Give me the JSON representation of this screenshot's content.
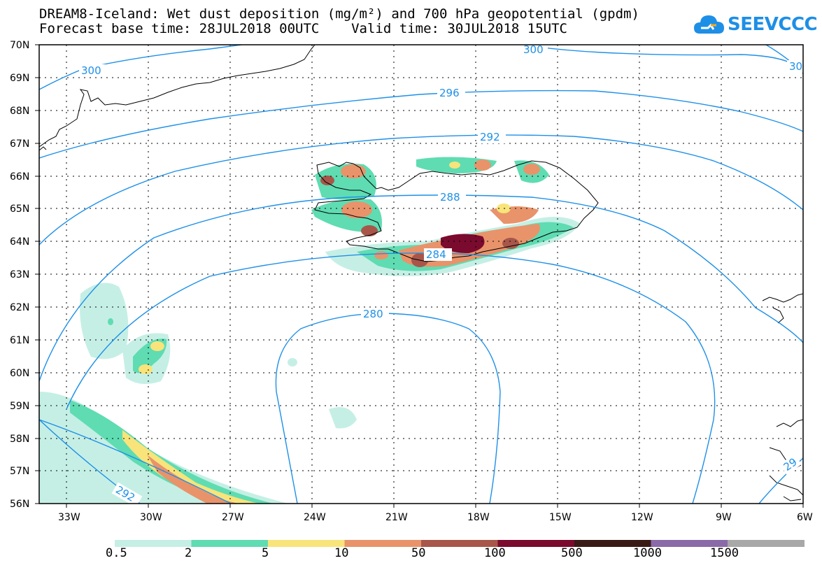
{
  "title": {
    "line1": "DREAM8-Iceland: Wet dust deposition (mg/m²) and 700 hPa geopotential (gpdm)",
    "line2": "Forecast base time: 28JUL2018 00UTC    Valid time: 30JUL2018 15UTC"
  },
  "logo": {
    "text": "SEEVCCC",
    "icon": "cloud-icon"
  },
  "axes": {
    "lat_labels": [
      "70N",
      "69N",
      "68N",
      "67N",
      "66N",
      "65N",
      "64N",
      "63N",
      "62N",
      "61N",
      "60N",
      "59N",
      "58N",
      "57N",
      "56N"
    ],
    "lon_labels": [
      "33W",
      "30W",
      "27W",
      "24W",
      "21W",
      "18W",
      "15W",
      "12W",
      "9W",
      "6W"
    ],
    "lat_range": [
      56,
      70
    ],
    "lon_range": [
      -34.0,
      -6.0
    ],
    "grid": "dotted"
  },
  "contours": {
    "field": "700 hPa geopotential (gpdm)",
    "color": "#1e90e8",
    "labels": [
      {
        "id": "c300a",
        "text": "300"
      },
      {
        "id": "c300b",
        "text": "300"
      },
      {
        "id": "c30",
        "text": "30"
      },
      {
        "id": "c296",
        "text": "296"
      },
      {
        "id": "c292",
        "text": "292"
      },
      {
        "id": "c288",
        "text": "288"
      },
      {
        "id": "c284",
        "text": "284"
      },
      {
        "id": "c280",
        "text": "280"
      },
      {
        "id": "c292b",
        "text": "292"
      },
      {
        "id": "c29",
        "text": "29"
      }
    ]
  },
  "colorbar": {
    "colors": [
      "#c5efe5",
      "#5fdcb2",
      "#f8e47a",
      "#e9936a",
      "#a8564a",
      "#7a0a2e",
      "#3a1a14",
      "#8a6aa8",
      "#a8a8a8"
    ],
    "labels": [
      "0.5",
      "2",
      "5",
      "10",
      "50",
      "100",
      "500",
      "1000",
      "1500"
    ]
  }
}
